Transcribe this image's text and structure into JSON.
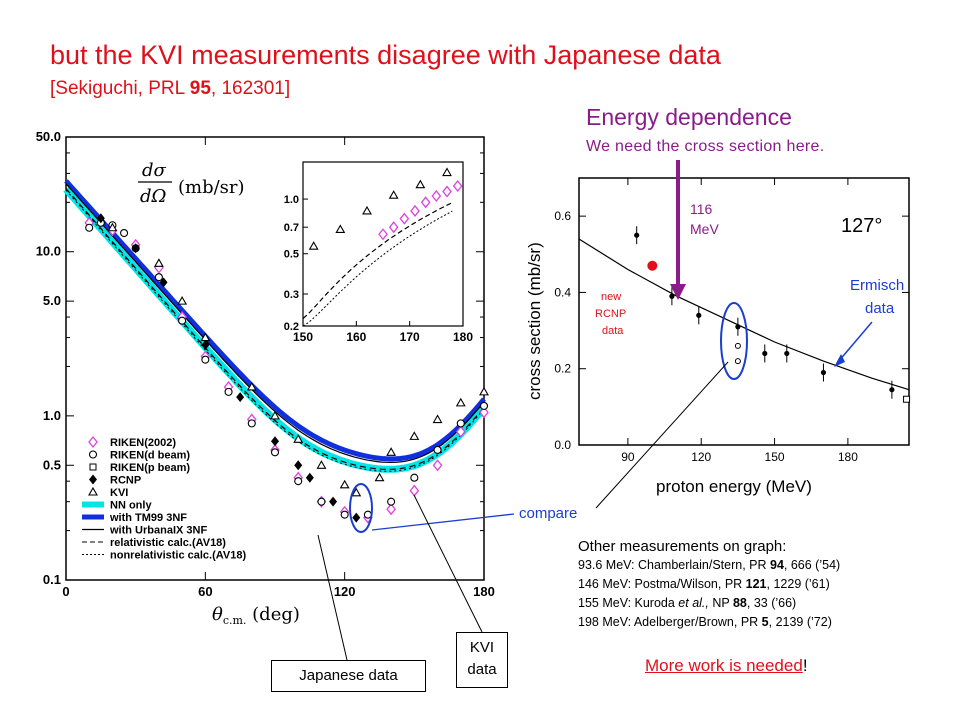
{
  "title": "but the KVI measurements disagree with Japanese data",
  "subtitle": {
    "prefix": "[Sekiguchi, PRL ",
    "volume": "95",
    "suffix": ", 162301]"
  },
  "energy_panel": {
    "heading": "Energy dependence",
    "subheading": "We need the cross section here.",
    "arrow_label_1": "116",
    "arrow_label_2": "MeV",
    "ermisch_1": "Ermisch",
    "ermisch_2": "data",
    "rcnp_1": "new",
    "rcnp_2": "RCNP",
    "rcnp_3": "data",
    "compare": "compare",
    "angle_label": "127°"
  },
  "callouts": {
    "japanese": "Japanese data",
    "kvi_1": "KVI",
    "kvi_2": "data"
  },
  "other_measurements": {
    "heading": "Other measurements on graph:",
    "lines": [
      {
        "a": "93.6 MeV:  Chamberlain/Stern, PR ",
        "v": "94",
        "b": ", 666 (’54)"
      },
      {
        "a": "146 MeV:  Postma/Wilson, PR ",
        "v": "121",
        "b": ", 1229 (’61)"
      },
      {
        "a": "155 MeV:  Kuroda ",
        "it": "et al.,",
        "a2": " NP ",
        "v": "88",
        "b": ", 33 (’66)"
      },
      {
        "a": "198 MeV:  Adelberger/Brown, PR ",
        "v": "5",
        "b": ", 2139 (’72)"
      }
    ]
  },
  "more_work": {
    "text": "More work is needed",
    "bang": "!"
  },
  "colors": {
    "title": "#e0101a",
    "energy": "#8a1c8a",
    "callout_line": "#1a3fd0",
    "rcnp_new": "#e0101a",
    "ermisch_label": "#1a3fd0",
    "riken2002": "#e040e0",
    "nn_only": "#00e5e5",
    "tm99": "#1030e0"
  },
  "chart_data": [
    {
      "type": "scatter",
      "log_y": true,
      "xlabel": "θc.m. (deg)",
      "ylabel": "dσ/dΩ (mb/sr)",
      "xlim": [
        0,
        180
      ],
      "ylim": [
        0.1,
        50.0
      ],
      "x_ticks": [
        "0",
        "60",
        "120",
        "180"
      ],
      "y_ticks": [
        "0.1",
        "0.5",
        "1.0",
        "5.0",
        "10.0",
        "50.0"
      ],
      "legend": {
        "placement": "bottom-left",
        "entries": [
          "RIKEN(2002)",
          "RIKEN(d beam)",
          "RIKEN(p beam)",
          "RCNP",
          "KVI",
          "NN only",
          "with TM99 3NF",
          "with UrbanaIX 3NF",
          "relativistic calc.(AV18)",
          "nonrelativistic calc.(AV18)"
        ]
      },
      "series": [
        {
          "name": "RIKEN(2002)",
          "marker": "diamond-open",
          "x": [
            10,
            20,
            30,
            40,
            50,
            60,
            70,
            80,
            90,
            100,
            110,
            120,
            130,
            140,
            150,
            160,
            170,
            180
          ],
          "y": [
            15.0,
            13.5,
            11.0,
            8.0,
            4.0,
            2.3,
            1.5,
            0.95,
            0.62,
            0.42,
            0.3,
            0.26,
            0.24,
            0.27,
            0.35,
            0.5,
            0.8,
            1.05
          ]
        },
        {
          "name": "RIKEN(d beam)",
          "marker": "circle-open",
          "x": [
            10,
            15,
            20,
            25,
            30,
            40,
            50,
            60,
            70,
            80,
            90,
            100,
            110,
            120,
            130,
            140,
            150,
            160,
            170,
            180
          ],
          "y": [
            14.0,
            15.0,
            14.5,
            13.0,
            10.5,
            7.0,
            3.8,
            2.2,
            1.4,
            0.9,
            0.6,
            0.4,
            0.3,
            0.25,
            0.25,
            0.3,
            0.42,
            0.62,
            0.9,
            1.15
          ]
        },
        {
          "name": "RCNP",
          "marker": "diamond-filled",
          "x": [
            15,
            30,
            42,
            60,
            75,
            90,
            100,
            105,
            115,
            125
          ],
          "y": [
            16.0,
            10.5,
            6.5,
            2.7,
            1.3,
            0.7,
            0.5,
            0.42,
            0.3,
            0.24
          ]
        },
        {
          "name": "KVI",
          "marker": "triangle-open",
          "x": [
            20,
            40,
            50,
            60,
            80,
            90,
            100,
            110,
            120,
            125,
            135,
            140,
            150,
            160,
            170,
            180
          ],
          "y": [
            14.0,
            8.5,
            5.0,
            3.0,
            1.5,
            1.0,
            0.72,
            0.5,
            0.38,
            0.34,
            0.42,
            0.6,
            0.75,
            0.95,
            1.2,
            1.4
          ]
        }
      ],
      "inset": {
        "xlim": [
          150,
          180
        ],
        "x_ticks": [
          "150",
          "160",
          "170",
          "180"
        ],
        "y_ticks": [
          "0.2",
          "0.3",
          "0.5",
          "0.7",
          "1.0"
        ],
        "riken_x": [
          165,
          167,
          169,
          171,
          173,
          175,
          177,
          179
        ],
        "riken_y": [
          0.64,
          0.7,
          0.78,
          0.86,
          0.96,
          1.04,
          1.1,
          1.18
        ],
        "kvi_x": [
          152,
          157,
          162,
          167,
          172,
          177
        ],
        "kvi_y": [
          0.55,
          0.68,
          0.86,
          1.05,
          1.2,
          1.4
        ]
      }
    },
    {
      "type": "scatter",
      "xlabel": "proton energy (MeV)",
      "ylabel": "cross section (mb/sr)",
      "xlim": [
        70,
        205
      ],
      "ylim": [
        0.0,
        0.7
      ],
      "x_ticks": [
        "90",
        "120",
        "150",
        "180"
      ],
      "y_ticks": [
        "0.0",
        "0.2",
        "0.4",
        "0.6"
      ],
      "annotation": "127°",
      "points_x": [
        93.6,
        108,
        119,
        135,
        146,
        155,
        170,
        198
      ],
      "points_y": [
        0.55,
        0.39,
        0.34,
        0.31,
        0.24,
        0.24,
        0.19,
        0.145
      ],
      "new_rcnp": {
        "x": 100,
        "y": 0.47
      },
      "fit_x": [
        70,
        90,
        110,
        130,
        150,
        170,
        190,
        205
      ],
      "fit_y": [
        0.54,
        0.46,
        0.39,
        0.33,
        0.27,
        0.22,
        0.175,
        0.145
      ]
    }
  ]
}
